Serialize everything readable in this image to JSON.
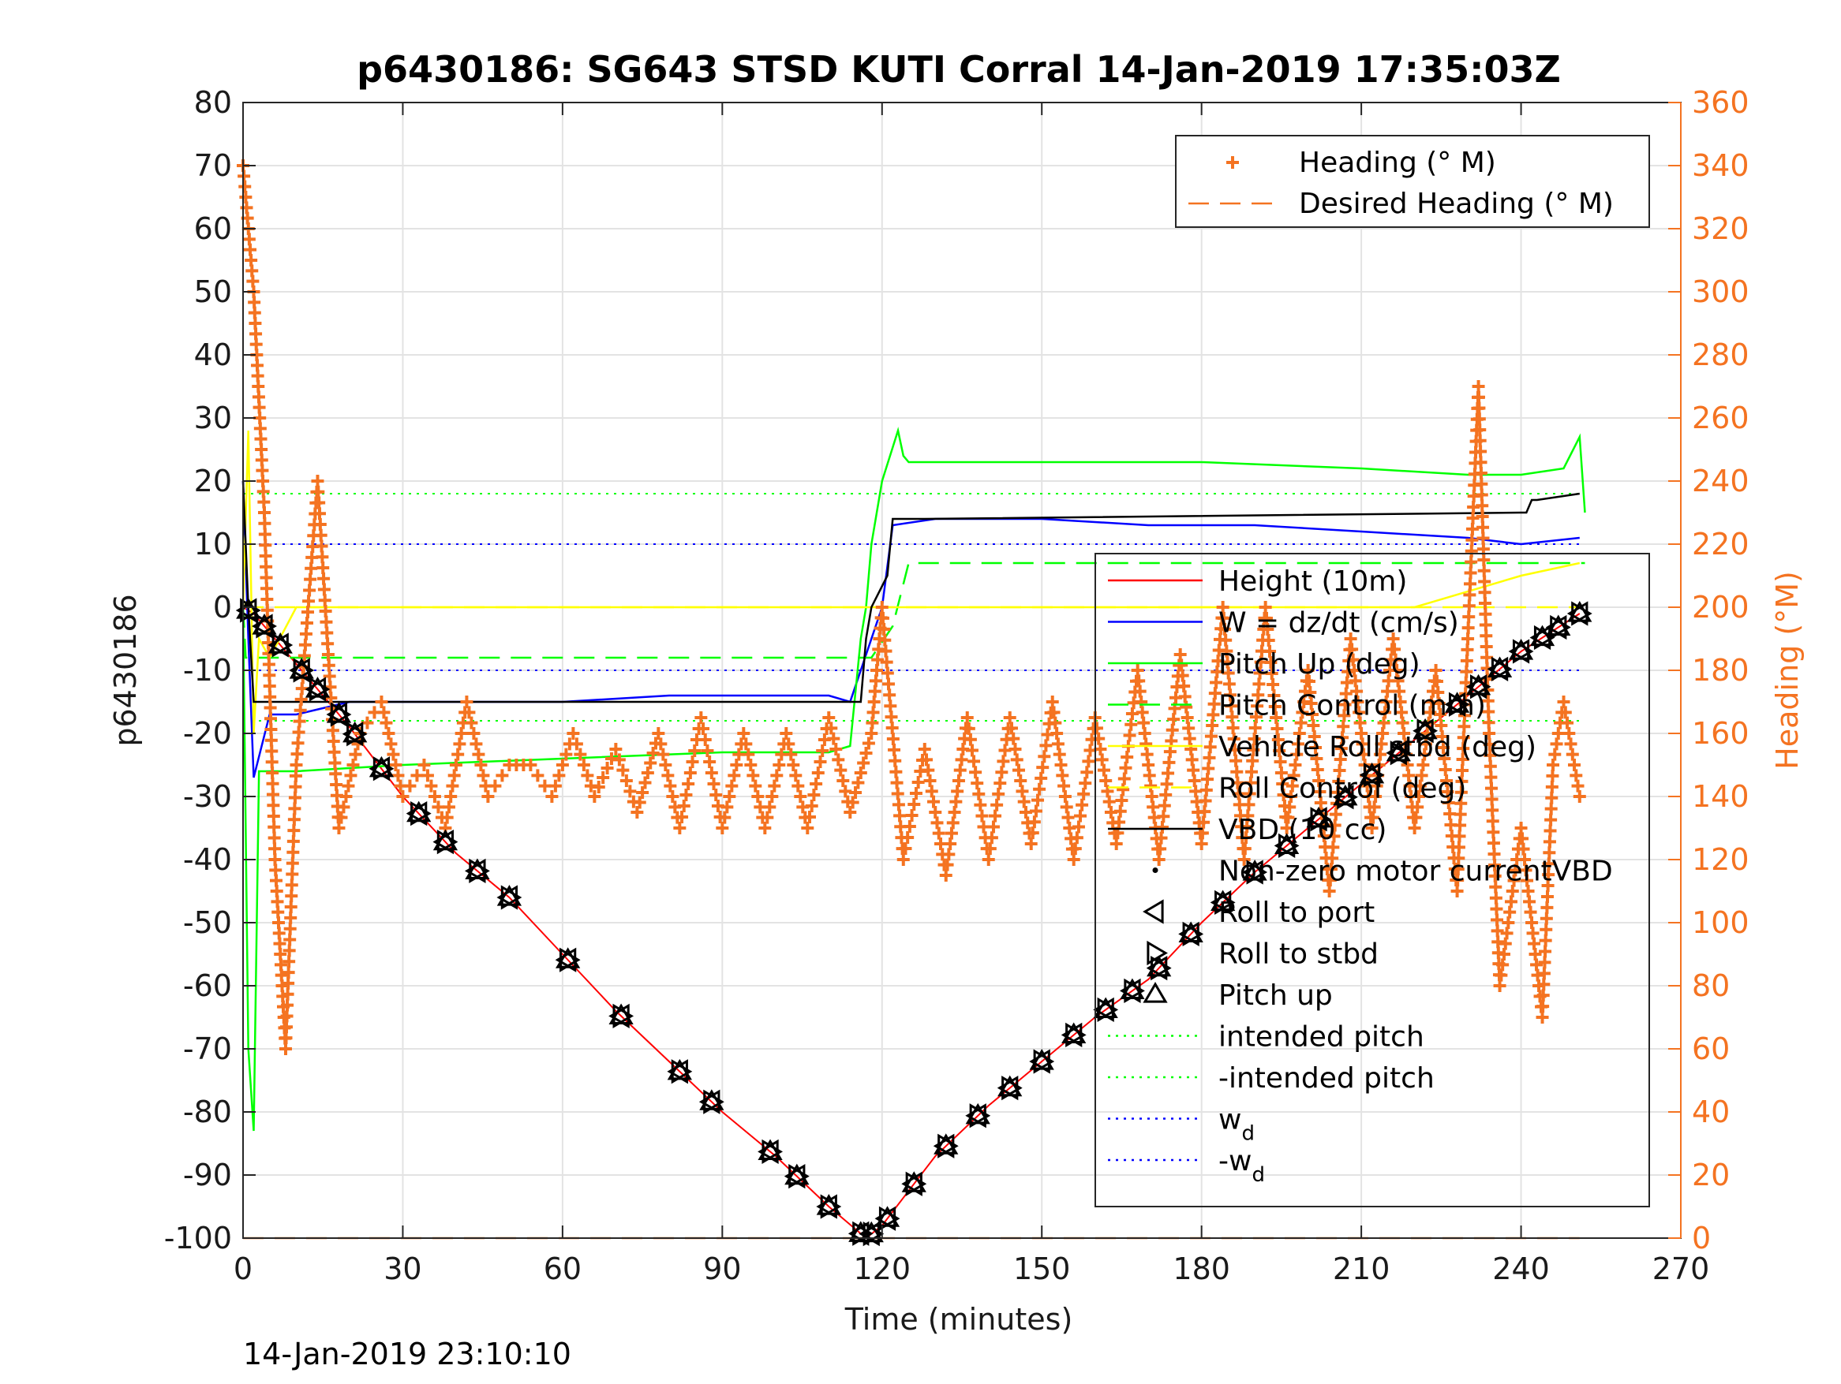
{
  "chart_data": {
    "type": "line",
    "title": "p6430186: SG643 STSD KUTI Corral 14-Jan-2019 17:35:03Z",
    "xlabel": "Time (minutes)",
    "ylabel_left": "p6430186",
    "ylabel_right": "Heading (°M)",
    "footer": "14-Jan-2019 23:10:10",
    "xlim": [
      0,
      270
    ],
    "ylim_left": [
      -100,
      80
    ],
    "ylim_right": [
      0,
      360
    ],
    "xticks": [
      0,
      30,
      60,
      90,
      120,
      150,
      180,
      210,
      240,
      270
    ],
    "yticks_left": [
      -100,
      -90,
      -80,
      -70,
      -60,
      -50,
      -40,
      -30,
      -20,
      -10,
      0,
      10,
      20,
      30,
      40,
      50,
      60,
      70,
      80
    ],
    "yticks_right": [
      0,
      20,
      40,
      60,
      80,
      100,
      120,
      140,
      160,
      180,
      200,
      220,
      240,
      260,
      280,
      300,
      320,
      340,
      360
    ],
    "grid": true,
    "colors": {
      "height": "#FF0000",
      "w": "#0000FF",
      "pitch": "#00FF00",
      "roll": "#FFFF00",
      "vbd": "#000000",
      "heading": "#F47321",
      "markers": "#000000"
    },
    "legend_right": {
      "placement": "top-right",
      "entries": [
        "Heading (° M)",
        "Desired Heading (° M)"
      ]
    },
    "legend_left": {
      "placement": "center-right",
      "entries": [
        "Height (10m)",
        "W = dz/dt (cm/s)",
        "Pitch Up (deg)",
        "Pitch Control (mm)",
        "Vehicle Roll stbd (deg)",
        "Roll Control (deg)",
        "VBD (10 cc)",
        "Non-zero motor currentVBD",
        "Roll to port",
        "Roll to stbd",
        "Pitch up",
        "intended pitch",
        "-intended pitch",
        "w",
        "-w"
      ],
      "subscripts": {
        "13": "d",
        "14": "d"
      }
    },
    "series": [
      {
        "name": "Height (10m)",
        "axis": "left",
        "x": [
          0,
          2,
          10,
          20,
          30,
          40,
          50,
          60,
          70,
          80,
          90,
          100,
          110,
          117,
          120,
          130,
          140,
          150,
          160,
          170,
          180,
          190,
          200,
          210,
          220,
          230,
          240,
          251
        ],
        "values": [
          0,
          -1,
          -9,
          -19,
          -30,
          -39,
          -46,
          -55,
          -64,
          -72,
          -80,
          -87,
          -95,
          -100,
          -98,
          -87,
          -79,
          -72,
          -65,
          -59,
          -50,
          -42,
          -35,
          -28,
          -21,
          -14,
          -7,
          -1
        ]
      },
      {
        "name": "W = dz/dt (cm/s)",
        "axis": "left",
        "x": [
          0,
          1,
          2,
          5,
          10,
          20,
          40,
          60,
          80,
          100,
          110,
          114,
          116,
          118,
          120,
          122,
          130,
          150,
          170,
          190,
          210,
          230,
          240,
          251
        ],
        "values": [
          20,
          -5,
          -27,
          -17,
          -17,
          -15,
          -15,
          -15,
          -14,
          -14,
          -14,
          -15,
          -10,
          -5,
          0,
          13,
          14,
          14,
          13,
          13,
          12,
          11,
          10,
          11
        ]
      },
      {
        "name": "Pitch Up (deg)",
        "axis": "left",
        "x": [
          0,
          1,
          2,
          3,
          10,
          30,
          60,
          90,
          110,
          114,
          116,
          117,
          118,
          120,
          123,
          124,
          125,
          150,
          180,
          210,
          230,
          240,
          248,
          251,
          252
        ],
        "values": [
          0,
          -70,
          -83,
          -26,
          -26,
          -25,
          -24,
          -23,
          -23,
          -22,
          -5,
          0,
          10,
          20,
          28,
          24,
          23,
          23,
          23,
          22,
          21,
          21,
          22,
          27,
          15
        ]
      },
      {
        "name": "Pitch Control (mm)",
        "axis": "left",
        "x": [
          0,
          0.5,
          1,
          2,
          116,
          118,
          122,
          125,
          251,
          252
        ],
        "values": [
          0,
          -8,
          -8,
          -8,
          -8,
          -8,
          -3,
          7,
          7,
          7
        ]
      },
      {
        "name": "Vehicle Roll stbd (deg)",
        "axis": "left",
        "x": [
          0,
          1,
          2,
          3,
          5,
          10,
          20,
          40,
          60,
          80,
          100,
          115,
          117,
          120,
          140,
          160,
          180,
          200,
          220,
          240,
          251
        ],
        "values": [
          0,
          28,
          -20,
          -5,
          -8,
          0,
          0,
          0,
          0,
          0,
          0,
          0,
          0,
          0,
          0,
          0,
          0,
          0,
          0,
          5,
          7
        ]
      },
      {
        "name": "Roll Control (deg)",
        "axis": "left",
        "x": [
          0,
          1,
          2,
          5,
          116,
          117,
          251
        ],
        "values": [
          0,
          0,
          0,
          0,
          0,
          0,
          0
        ]
      },
      {
        "name": "VBD (10 cc)",
        "axis": "left",
        "x": [
          0,
          1,
          2,
          3,
          115,
          116,
          117,
          118,
          121,
          122,
          128,
          240,
          241,
          242,
          243,
          251
        ],
        "values": [
          20,
          0,
          -15,
          -15,
          -15,
          -15,
          -5,
          0,
          5,
          14,
          14,
          15,
          15,
          17,
          17,
          18
        ]
      },
      {
        "name": "Desired Heading (° M)",
        "axis": "right",
        "x": [
          0,
          251
        ],
        "values": [
          0,
          0
        ]
      },
      {
        "name": "Heading (° M)",
        "axis": "right",
        "x": [
          0,
          2,
          4,
          6,
          8,
          10,
          14,
          18,
          22,
          26,
          30,
          34,
          38,
          42,
          46,
          50,
          54,
          58,
          62,
          66,
          70,
          74,
          78,
          82,
          86,
          90,
          94,
          98,
          102,
          106,
          110,
          114,
          118,
          120,
          124,
          128,
          132,
          136,
          140,
          144,
          148,
          152,
          156,
          160,
          164,
          168,
          172,
          176,
          180,
          184,
          188,
          192,
          196,
          200,
          204,
          208,
          212,
          216,
          220,
          224,
          228,
          232,
          234,
          236,
          240,
          244,
          246,
          248,
          251
        ],
        "values": [
          340,
          300,
          230,
          120,
          60,
          150,
          240,
          130,
          160,
          170,
          140,
          150,
          130,
          170,
          140,
          150,
          150,
          140,
          160,
          140,
          155,
          135,
          160,
          130,
          165,
          130,
          160,
          130,
          160,
          130,
          165,
          135,
          160,
          200,
          120,
          155,
          115,
          165,
          120,
          165,
          125,
          170,
          120,
          165,
          125,
          180,
          120,
          185,
          125,
          200,
          120,
          200,
          130,
          180,
          110,
          190,
          130,
          190,
          130,
          180,
          110,
          270,
          160,
          80,
          130,
          70,
          150,
          170,
          140
        ]
      }
    ],
    "markers": [
      {
        "name": "Roll to port",
        "shape": "triangle-left"
      },
      {
        "name": "Roll to stbd",
        "shape": "triangle-right"
      },
      {
        "name": "Pitch up",
        "shape": "triangle-up"
      }
    ]
  }
}
